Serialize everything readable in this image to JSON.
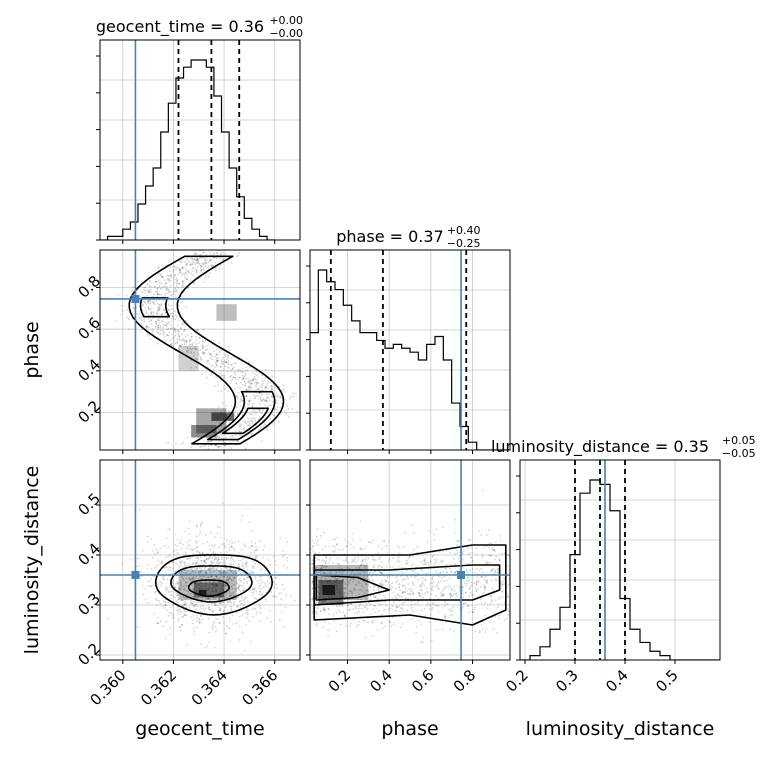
{
  "chart_data": {
    "type": "corner",
    "parameters": [
      "geocent_time",
      "phase",
      "luminosity_distance"
    ],
    "truths": {
      "geocent_time": 0.3605,
      "phase": 0.745,
      "luminosity_distance": 0.36
    },
    "truth_color": "#4682b4",
    "titles": [
      {
        "text": "geocent_time = 0.36",
        "sup": "+0.00",
        "sub": "−0.00"
      },
      {
        "text": "phase = 0.37",
        "sup": "+0.40",
        "sub": "−0.25"
      },
      {
        "text": "luminosity_distance = 0.35",
        "sup": "+0.05",
        "sub": "−0.05"
      }
    ],
    "axis_labels": {
      "x": [
        "geocent_time",
        "phase",
        "luminosity_distance"
      ],
      "y": [
        "phase",
        "luminosity_distance"
      ]
    },
    "ranges": {
      "geocent_time": [
        0.3591,
        0.367
      ],
      "phase": [
        0.02,
        0.98
      ],
      "luminosity_distance": [
        0.19,
        0.59
      ]
    },
    "ticks": {
      "geocent_time": [
        "0.360",
        "0.362",
        "0.364",
        "0.366"
      ],
      "phase": [
        "0.2",
        "0.4",
        "0.6",
        "0.8"
      ],
      "luminosity_distance": [
        "0.2",
        "0.3",
        "0.4",
        "0.5"
      ]
    },
    "quantiles": {
      "geocent_time": [
        0.3622,
        0.3635,
        0.3646
      ],
      "phase": [
        0.12,
        0.37,
        0.77
      ],
      "luminosity_distance": [
        0.3,
        0.35,
        0.4
      ]
    },
    "histograms": {
      "geocent_time": {
        "edges_start": 0.3591,
        "bin_width": 0.0003,
        "counts": [
          0,
          1,
          1,
          3,
          5,
          10,
          15,
          20,
          30,
          38,
          45,
          48,
          50,
          50,
          48,
          40,
          30,
          20,
          12,
          6,
          3,
          1,
          0
        ]
      },
      "phase": {
        "edges_start": 0.02,
        "bin_width": 0.04,
        "counts": [
          30,
          46,
          43,
          41,
          37,
          33,
          30,
          30,
          28,
          26,
          27,
          26,
          25,
          23,
          27,
          29,
          23,
          12,
          6,
          2,
          0,
          0,
          0,
          0
        ]
      },
      "luminosity_distance": {
        "edges_start": 0.19,
        "bin_width": 0.02,
        "counts": [
          0,
          1,
          3,
          7,
          12,
          24,
          38,
          41,
          40,
          34,
          14,
          7,
          4,
          2,
          1,
          0,
          0,
          0,
          0,
          0
        ]
      }
    },
    "grid": true
  }
}
